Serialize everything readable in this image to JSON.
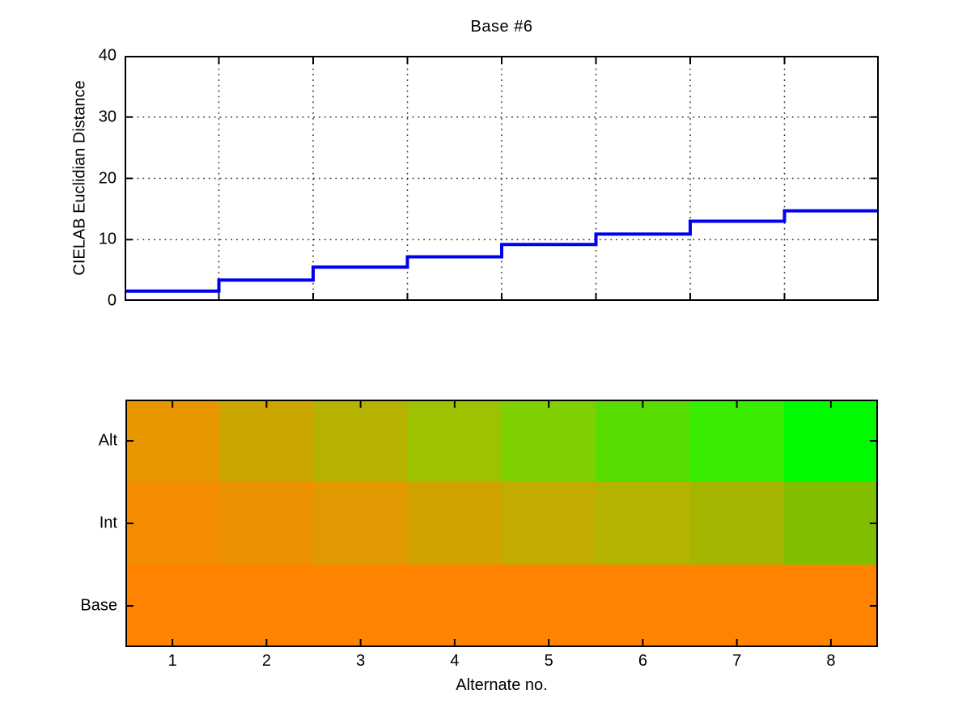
{
  "figure": {
    "background": "#FFFFFF"
  },
  "chart_data": [
    {
      "type": "line",
      "subtype": "stairs",
      "title": "Base #6",
      "ylabel": "CIELAB Euclidian Distance",
      "xlabel": "",
      "x": [
        1,
        2,
        3,
        4,
        5,
        6,
        7,
        8
      ],
      "values": [
        1.6,
        3.4,
        5.5,
        7.2,
        9.2,
        10.9,
        13.0,
        14.7
      ],
      "ylim": [
        0,
        40
      ],
      "yticks": [
        0,
        10,
        20,
        30,
        40
      ],
      "ytick_labels": [
        "0",
        "10",
        "20",
        "30",
        "40"
      ],
      "n_x_gridlines": 7,
      "grid": true,
      "grid_style": "dotted",
      "line_color": "#0000EE",
      "axis_color": "#000000"
    },
    {
      "type": "heatmap",
      "xlabel": "Alternate no.",
      "x_ticklabels": [
        "1",
        "2",
        "3",
        "4",
        "5",
        "6",
        "7",
        "8"
      ],
      "row_labels": [
        "Alt",
        "Int",
        "Base"
      ],
      "cell_colors": [
        [
          "#E89600",
          "#CBA500",
          "#B5B200",
          "#9DC300",
          "#7ED000",
          "#58DC00",
          "#38EC00",
          "#00FA00"
        ],
        [
          "#F38C00",
          "#EC9100",
          "#E09900",
          "#D1A300",
          "#C3AC00",
          "#B4B300",
          "#A6B600",
          "#82BE00"
        ],
        [
          "#FF8200",
          "#FF8200",
          "#FF8200",
          "#FF8200",
          "#FF8200",
          "#FF8200",
          "#FF8200",
          "#FF8200"
        ]
      ]
    }
  ]
}
